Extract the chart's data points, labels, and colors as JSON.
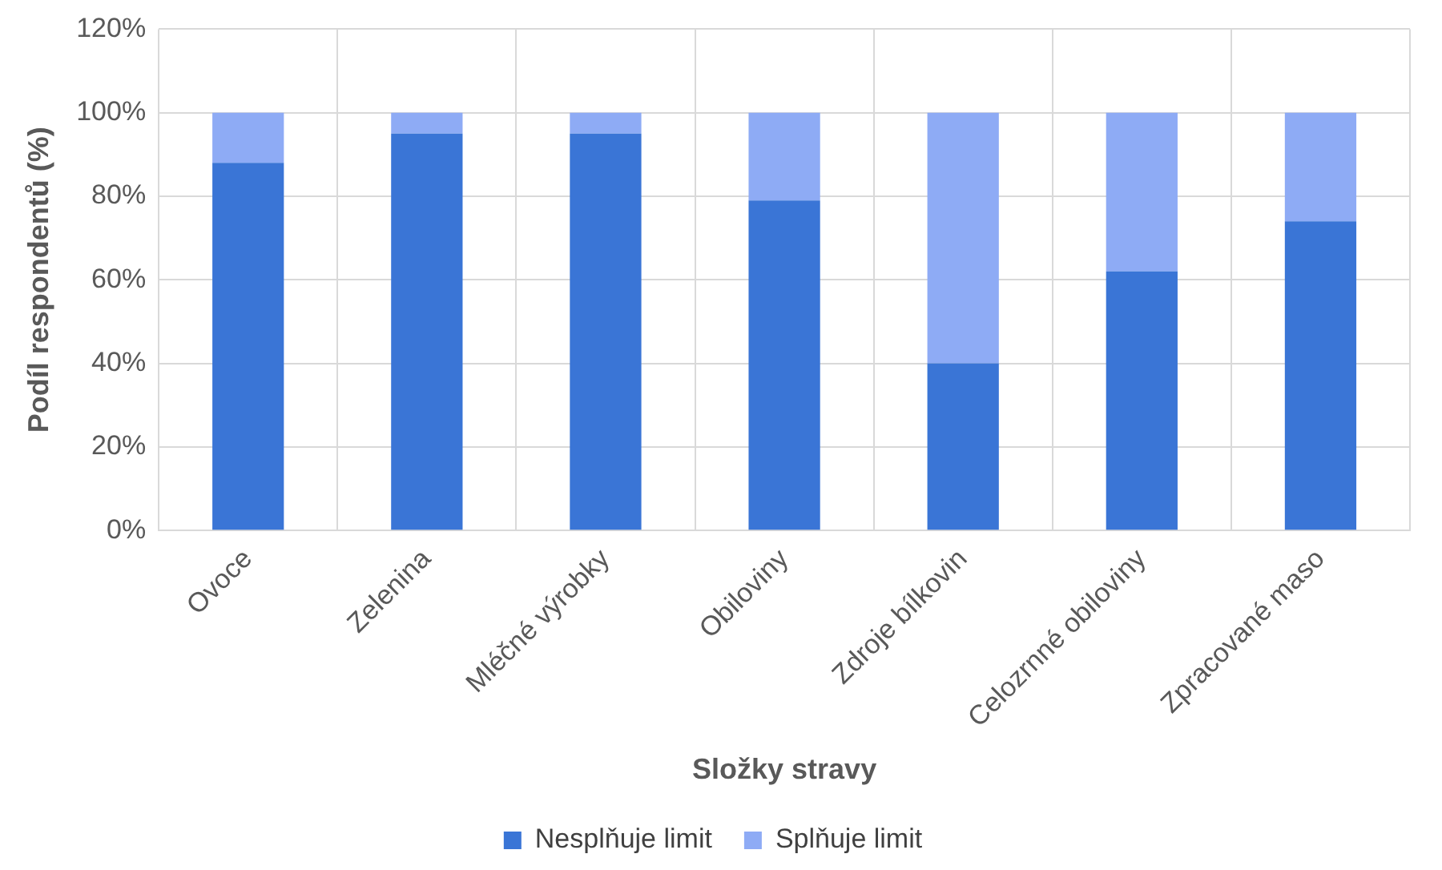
{
  "chart_data": {
    "type": "bar",
    "stacked": true,
    "xlabel": "Složky stravy",
    "ylabel": "Podíl respondentů (%)",
    "categories": [
      "Ovoce",
      "Zelenina",
      "Mléčné výrobky",
      "Obiloviny",
      "Zdroje bílkovin",
      "Celozrnné obiloviny",
      "Zpracované maso"
    ],
    "series": [
      {
        "name": "Nesplňuje limit",
        "color": "#3a75d6",
        "values": [
          88,
          95,
          95,
          79,
          40,
          62,
          74
        ]
      },
      {
        "name": "Splňuje limit",
        "color": "#8eabf5",
        "values": [
          12,
          5,
          5,
          21,
          60,
          38,
          26
        ]
      }
    ],
    "ylim": [
      0,
      120
    ],
    "yticks": [
      {
        "value": 0,
        "label": "0%"
      },
      {
        "value": 20,
        "label": "20%"
      },
      {
        "value": 40,
        "label": "40%"
      },
      {
        "value": 60,
        "label": "60%"
      },
      {
        "value": 80,
        "label": "80%"
      },
      {
        "value": 100,
        "label": "100%"
      },
      {
        "value": 120,
        "label": "120%"
      }
    ],
    "grid": true,
    "legend": "bottom"
  }
}
